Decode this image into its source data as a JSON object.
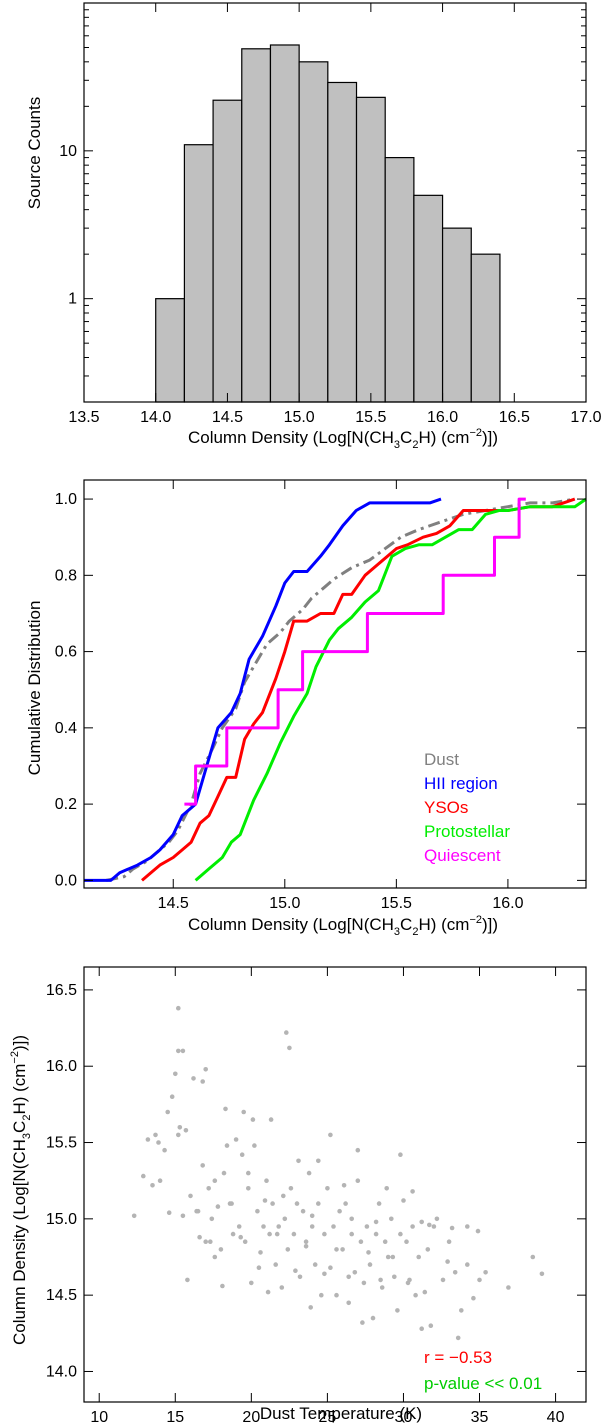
{
  "colors": {
    "bar_fill": "#c0c0c0",
    "dust": "#808080",
    "hii": "#0000ff",
    "ysos": "#ff0000",
    "protostellar": "#00ee00",
    "quiescent": "#ff00ff",
    "scatter": "#b4b4b4",
    "r_text": "#ff0000",
    "p_text": "#00cc00"
  },
  "chart_data": [
    {
      "type": "bar",
      "xlabel_parts": {
        "pre": "Column Density (Log[N(CH",
        "sub1": "3",
        "mid": "C",
        "sub2": "2",
        "post": "H) (cm",
        "sup": "−2",
        "end": ")])"
      },
      "ylabel": "Source Counts",
      "yscale": "log",
      "xlim": [
        13.5,
        17.0
      ],
      "ylim": [
        0.2,
        100
      ],
      "xticks": [
        "13.5",
        "14.0",
        "14.5",
        "15.0",
        "15.5",
        "16.0",
        "16.5",
        "17.0"
      ],
      "xtick_values": [
        13.5,
        14.0,
        14.5,
        15.0,
        15.5,
        16.0,
        16.5,
        17.0
      ],
      "yticks": [
        "1",
        "10"
      ],
      "ytick_values": [
        1,
        10
      ],
      "bin_edges": [
        14.0,
        14.2,
        14.4,
        14.6,
        14.8,
        15.0,
        15.2,
        15.4,
        15.6,
        15.8,
        16.0,
        16.2,
        16.4
      ],
      "values": [
        1,
        11,
        22,
        49,
        52,
        40,
        29,
        23,
        9,
        5,
        3,
        2
      ]
    },
    {
      "type": "line",
      "xlabel_parts": {
        "pre": "Column Density (Log[N(CH",
        "sub1": "3",
        "mid": "C",
        "sub2": "2",
        "post": "H) (cm",
        "sup": "−2",
        "end": ")])"
      },
      "ylabel": "Cumulative Distribution",
      "xlim": [
        14.1,
        16.35
      ],
      "ylim": [
        -0.02,
        1.05
      ],
      "xticks": [
        "14.5",
        "15.0",
        "15.5",
        "16.0"
      ],
      "xtick_values": [
        14.5,
        15.0,
        15.5,
        16.0
      ],
      "yticks": [
        "0.0",
        "0.2",
        "0.4",
        "0.6",
        "0.8",
        "1.0"
      ],
      "ytick_values": [
        0.0,
        0.2,
        0.4,
        0.6,
        0.8,
        1.0
      ],
      "series": [
        {
          "name": "Dust",
          "color_key": "dust",
          "style": "dashdot",
          "x": [
            14.2,
            14.28,
            14.32,
            14.38,
            14.42,
            14.48,
            14.52,
            14.58,
            14.62,
            14.68,
            14.72,
            14.78,
            14.82,
            14.88,
            14.92,
            14.98,
            15.02,
            15.08,
            15.12,
            15.18,
            15.22,
            15.3,
            15.38,
            15.45,
            15.52,
            15.6,
            15.7,
            15.8,
            15.9,
            16.0,
            16.1,
            16.2,
            16.3
          ],
          "y": [
            0.0,
            0.01,
            0.03,
            0.05,
            0.07,
            0.1,
            0.13,
            0.2,
            0.28,
            0.35,
            0.4,
            0.45,
            0.52,
            0.58,
            0.62,
            0.65,
            0.68,
            0.71,
            0.74,
            0.77,
            0.79,
            0.82,
            0.84,
            0.87,
            0.9,
            0.92,
            0.94,
            0.96,
            0.97,
            0.98,
            0.99,
            0.99,
            1.0
          ]
        },
        {
          "name": "HII region",
          "color_key": "hii",
          "style": "solid",
          "x": [
            14.1,
            14.22,
            14.26,
            14.34,
            14.4,
            14.44,
            14.5,
            14.54,
            14.6,
            14.65,
            14.7,
            14.76,
            14.8,
            14.84,
            14.9,
            14.96,
            15.0,
            15.04,
            15.1,
            15.16,
            15.2,
            15.26,
            15.32,
            15.38,
            15.45,
            15.55,
            15.65,
            15.7
          ],
          "y": [
            0.0,
            0.0,
            0.02,
            0.04,
            0.06,
            0.08,
            0.12,
            0.17,
            0.2,
            0.3,
            0.4,
            0.44,
            0.49,
            0.58,
            0.64,
            0.72,
            0.78,
            0.81,
            0.81,
            0.85,
            0.88,
            0.93,
            0.97,
            0.99,
            0.99,
            0.99,
            0.99,
            1.0
          ]
        },
        {
          "name": "YSOs",
          "color_key": "ysos",
          "style": "solid",
          "x": [
            14.36,
            14.4,
            14.44,
            14.5,
            14.54,
            14.58,
            14.62,
            14.66,
            14.7,
            14.74,
            14.78,
            14.82,
            14.86,
            14.9,
            14.96,
            15.0,
            15.04,
            15.1,
            15.16,
            15.22,
            15.26,
            15.3,
            15.36,
            15.42,
            15.5,
            15.55,
            15.62,
            15.68,
            15.74,
            15.8,
            15.9,
            16.0,
            16.1,
            16.2,
            16.3
          ],
          "y": [
            0.0,
            0.02,
            0.04,
            0.06,
            0.08,
            0.1,
            0.15,
            0.17,
            0.22,
            0.27,
            0.27,
            0.37,
            0.41,
            0.44,
            0.53,
            0.6,
            0.68,
            0.68,
            0.7,
            0.7,
            0.75,
            0.75,
            0.8,
            0.83,
            0.87,
            0.88,
            0.9,
            0.91,
            0.93,
            0.97,
            0.97,
            0.97,
            0.98,
            0.98,
            1.0
          ]
        },
        {
          "name": "Protostellar",
          "color_key": "protostellar",
          "style": "solid",
          "x": [
            14.6,
            14.66,
            14.72,
            14.76,
            14.8,
            14.86,
            14.92,
            14.98,
            15.04,
            15.1,
            15.14,
            15.2,
            15.24,
            15.3,
            15.36,
            15.42,
            15.48,
            15.54,
            15.6,
            15.66,
            15.72,
            15.78,
            15.84,
            15.9,
            15.96,
            16.0,
            16.1,
            16.2,
            16.3,
            16.35
          ],
          "y": [
            0.0,
            0.03,
            0.06,
            0.1,
            0.12,
            0.21,
            0.28,
            0.36,
            0.43,
            0.49,
            0.56,
            0.63,
            0.66,
            0.69,
            0.73,
            0.76,
            0.85,
            0.87,
            0.88,
            0.88,
            0.9,
            0.92,
            0.92,
            0.96,
            0.97,
            0.97,
            0.98,
            0.98,
            0.98,
            1.0
          ]
        },
        {
          "name": "Quiescent",
          "color_key": "quiescent",
          "style": "step",
          "x": [
            14.55,
            14.6,
            14.6,
            14.65,
            14.65,
            14.74,
            14.74,
            14.85,
            14.85,
            14.97,
            14.97,
            15.08,
            15.08,
            15.13,
            15.13,
            15.37,
            15.37,
            15.52,
            15.52,
            15.71,
            15.71,
            15.94,
            15.94,
            16.05,
            16.05,
            16.08
          ],
          "y": [
            0.2,
            0.2,
            0.3,
            0.3,
            0.3,
            0.3,
            0.4,
            0.4,
            0.4,
            0.4,
            0.5,
            0.5,
            0.6,
            0.6,
            0.6,
            0.6,
            0.7,
            0.7,
            0.7,
            0.7,
            0.8,
            0.8,
            0.9,
            0.9,
            1.0,
            1.0
          ]
        }
      ],
      "legend_placement": "bottom-right"
    },
    {
      "type": "scatter",
      "xlabel": "Dust Temperature (K)",
      "ylabel_parts": {
        "pre": "Column Density (Log[N(CH",
        "sub1": "3",
        "mid": "C",
        "sub2": "2",
        "post": "H) (cm",
        "sup": "−2",
        "end": ")])"
      },
      "xlim": [
        9,
        42
      ],
      "ylim": [
        13.8,
        16.65
      ],
      "xticks": [
        "10",
        "15",
        "20",
        "25",
        "30",
        "35",
        "40"
      ],
      "xtick_values": [
        10,
        15,
        20,
        25,
        30,
        35,
        40
      ],
      "yticks": [
        "14.0",
        "14.5",
        "15.0",
        "15.5",
        "16.0",
        "16.5"
      ],
      "ytick_values": [
        14.0,
        14.5,
        15.0,
        15.5,
        16.0,
        16.5
      ],
      "x": [
        12.3,
        12.9,
        13.2,
        13.5,
        13.7,
        13.9,
        14.0,
        14.3,
        14.5,
        14.8,
        15.0,
        15.2,
        15.3,
        15.5,
        15.7,
        15.8,
        16.0,
        16.2,
        16.4,
        16.6,
        16.8,
        17.0,
        17.2,
        17.4,
        17.6,
        17.8,
        18.0,
        18.2,
        18.4,
        18.6,
        18.8,
        19.0,
        19.2,
        19.4,
        19.6,
        19.8,
        20.0,
        20.2,
        20.4,
        20.6,
        20.8,
        21.0,
        21.2,
        21.4,
        21.6,
        21.8,
        22.0,
        22.2,
        22.4,
        22.6,
        22.8,
        23.0,
        23.2,
        23.4,
        23.6,
        23.8,
        24.0,
        24.2,
        24.4,
        24.6,
        24.8,
        25.0,
        25.2,
        25.4,
        25.6,
        25.8,
        26.0,
        26.2,
        26.4,
        26.6,
        26.8,
        27.0,
        27.2,
        27.4,
        27.6,
        27.8,
        28.0,
        28.2,
        28.4,
        28.6,
        28.8,
        29.0,
        29.2,
        29.4,
        29.6,
        29.8,
        30.0,
        30.2,
        30.4,
        30.6,
        30.8,
        31.0,
        31.2,
        31.4,
        31.6,
        31.8,
        32.0,
        32.2,
        32.6,
        33.0,
        33.4,
        33.8,
        34.2,
        34.6,
        35.0,
        35.4,
        36.9,
        38.5,
        39.1,
        15.2,
        15.5,
        15.2,
        22.3,
        22.5,
        17.0,
        16.8,
        19.5,
        18.3,
        21.3,
        20.1,
        25.2,
        27.0,
        29.8,
        24.4,
        23.1,
        19.8,
        17.6,
        26.1,
        28.9,
        30.6,
        22.1,
        20.9,
        18.7,
        16.5,
        14.6,
        24.0,
        26.6,
        28.2,
        31.7,
        33.2,
        34.9,
        21.7,
        19.3,
        17.3,
        23.6,
        25.6,
        27.7,
        29.3,
        32.9,
        34.2,
        20.5,
        22.9,
        24.8,
        26.4,
        28.5,
        30.3,
        18.1,
        21.1,
        23.9,
        27.3,
        31.2,
        33.6
      ],
      "y": [
        15.02,
        15.28,
        15.52,
        15.22,
        15.55,
        15.5,
        15.25,
        15.45,
        15.7,
        15.8,
        15.95,
        15.55,
        15.6,
        15.02,
        15.58,
        14.6,
        15.15,
        15.92,
        15.05,
        14.88,
        15.35,
        14.85,
        15.2,
        15.0,
        14.75,
        15.08,
        14.8,
        15.3,
        15.48,
        15.1,
        14.9,
        15.52,
        14.95,
        15.42,
        14.85,
        15.2,
        14.58,
        15.48,
        15.05,
        14.78,
        14.95,
        15.25,
        14.9,
        15.1,
        14.7,
        14.95,
        14.55,
        15.0,
        14.8,
        15.2,
        14.9,
        15.1,
        14.62,
        15.05,
        14.85,
        15.3,
        14.95,
        14.7,
        15.1,
        14.5,
        14.9,
        15.2,
        14.68,
        14.95,
        14.5,
        15.05,
        14.8,
        15.1,
        14.45,
        14.9,
        14.65,
        15.25,
        14.85,
        14.58,
        14.95,
        14.7,
        14.35,
        14.9,
        15.1,
        14.55,
        14.85,
        14.75,
        15.0,
        14.62,
        14.4,
        14.9,
        15.12,
        14.85,
        14.6,
        14.95,
        14.5,
        14.75,
        14.98,
        14.52,
        14.8,
        14.3,
        14.95,
        15.0,
        14.6,
        14.85,
        14.65,
        14.4,
        14.95,
        14.48,
        14.6,
        14.65,
        14.55,
        14.75,
        14.64,
        16.38,
        16.1,
        16.1,
        16.22,
        16.12,
        15.98,
        15.9,
        15.7,
        15.72,
        15.65,
        15.65,
        15.55,
        15.45,
        15.42,
        15.38,
        15.38,
        15.3,
        15.25,
        15.22,
        15.2,
        15.18,
        15.15,
        15.12,
        15.1,
        15.05,
        15.04,
        15.02,
        15.0,
        14.98,
        14.96,
        14.94,
        14.92,
        14.9,
        14.88,
        14.85,
        14.82,
        14.8,
        14.78,
        14.75,
        14.72,
        14.7,
        14.68,
        14.66,
        14.64,
        14.62,
        14.6,
        14.58,
        14.56,
        14.52,
        14.42,
        14.32,
        14.28,
        14.22
      ]
    }
  ],
  "annotations": {
    "r_text": "r = −0.53",
    "p_text": "p-value << 0.01"
  }
}
